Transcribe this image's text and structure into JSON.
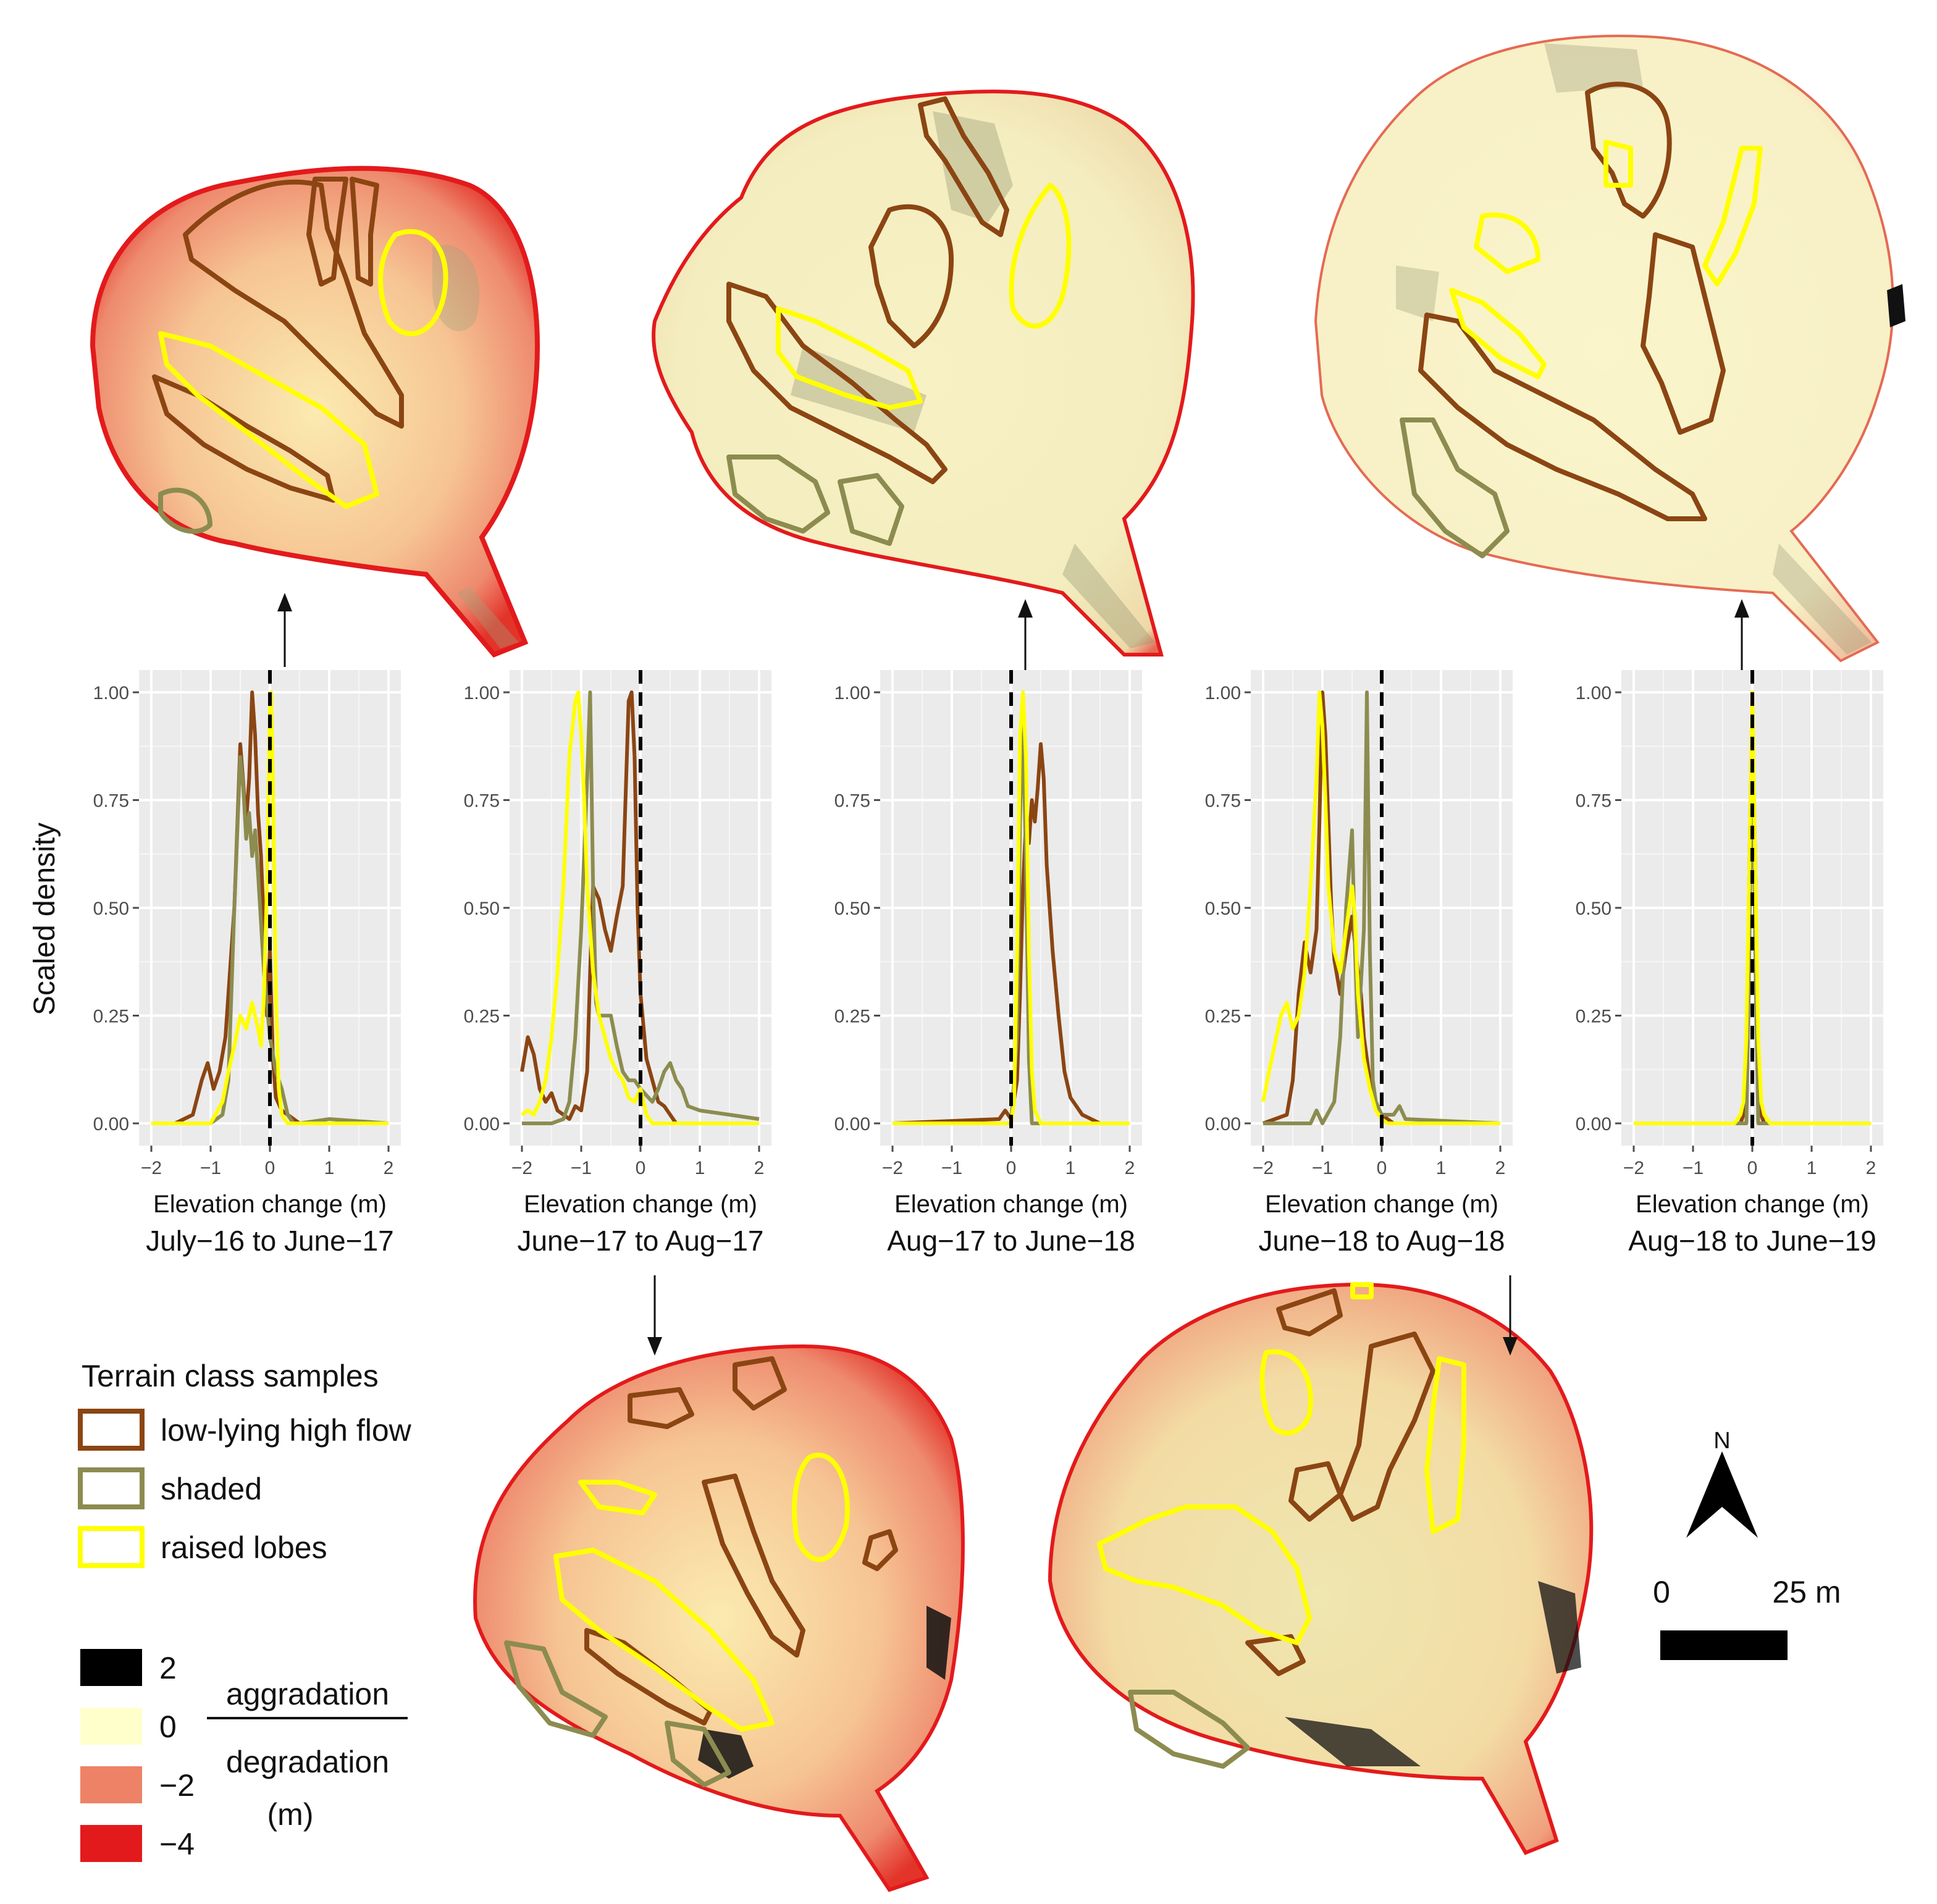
{
  "figure": {
    "y_axis_title": "Scaled density",
    "x_axis_title": "Elevation change (m)"
  },
  "chart_data": {
    "type": "line",
    "x_domain": [
      -2,
      2
    ],
    "y_domain": [
      0,
      1
    ],
    "x_ticks": [
      "−2",
      "−1",
      "0",
      "1",
      "2"
    ],
    "y_ticks": [
      "0.00",
      "0.25",
      "0.50",
      "0.75",
      "1.00"
    ],
    "reference_line_x": 0,
    "series_names": [
      "low-lying high flow",
      "shaded",
      "raised lobes"
    ],
    "series_colors": {
      "low-lying high flow": "#8B4513",
      "shaded": "#8C8C50",
      "raised lobes": "#FFFF00"
    },
    "panels": [
      {
        "title": "July−16 to June−17",
        "series": [
          {
            "name": "low-lying high flow",
            "x": [
              -2.0,
              -1.6,
              -1.3,
              -1.15,
              -1.05,
              -0.95,
              -0.85,
              -0.75,
              -0.6,
              -0.5,
              -0.4,
              -0.35,
              -0.3,
              -0.25,
              -0.2,
              -0.15,
              -0.1,
              -0.05,
              0.0,
              0.05,
              0.1,
              0.2,
              0.3,
              0.4,
              0.5,
              2.0
            ],
            "y": [
              0.0,
              0.0,
              0.02,
              0.1,
              0.14,
              0.08,
              0.12,
              0.2,
              0.5,
              0.88,
              0.7,
              0.8,
              1.0,
              0.9,
              0.72,
              0.62,
              0.45,
              0.25,
              0.4,
              0.15,
              0.06,
              0.03,
              0.02,
              0.01,
              0.0,
              0.0
            ]
          },
          {
            "name": "shaded",
            "x": [
              -2.0,
              -1.0,
              -0.8,
              -0.7,
              -0.6,
              -0.5,
              -0.45,
              -0.4,
              -0.35,
              -0.3,
              -0.25,
              -0.2,
              -0.1,
              0.0,
              0.1,
              0.2,
              0.3,
              0.4,
              0.5,
              1.0,
              2.0
            ],
            "y": [
              0.0,
              0.0,
              0.02,
              0.1,
              0.5,
              0.85,
              0.78,
              0.66,
              0.72,
              0.62,
              0.68,
              0.58,
              0.35,
              0.2,
              0.12,
              0.08,
              0.02,
              0.0,
              0.0,
              0.01,
              0.0
            ],
            "approximate": true
          },
          {
            "name": "raised lobes",
            "x": [
              -2.0,
              -1.5,
              -1.0,
              -0.8,
              -0.7,
              -0.6,
              -0.5,
              -0.4,
              -0.3,
              -0.2,
              -0.15,
              -0.1,
              -0.05,
              0.0,
              0.02,
              0.05,
              0.1,
              0.15,
              0.2,
              0.3,
              0.5,
              1.0,
              2.0
            ],
            "y": [
              0.0,
              0.0,
              0.0,
              0.05,
              0.12,
              0.18,
              0.25,
              0.22,
              0.28,
              0.22,
              0.18,
              0.3,
              0.55,
              0.96,
              1.0,
              0.8,
              0.3,
              0.08,
              0.02,
              0.0,
              0.0,
              0.0,
              0.0
            ]
          }
        ]
      },
      {
        "title": "June−17 to Aug−17",
        "series": [
          {
            "name": "low-lying high flow",
            "x": [
              -2.0,
              -1.9,
              -1.8,
              -1.7,
              -1.6,
              -1.5,
              -1.4,
              -1.2,
              -1.1,
              -1.0,
              -0.9,
              -0.85,
              -0.8,
              -0.7,
              -0.6,
              -0.5,
              -0.4,
              -0.3,
              -0.2,
              -0.15,
              -0.1,
              -0.05,
              0.0,
              0.1,
              0.2,
              0.3,
              0.4,
              0.5,
              0.6,
              2.0
            ],
            "y": [
              0.12,
              0.2,
              0.16,
              0.08,
              0.05,
              0.07,
              0.03,
              0.01,
              0.04,
              0.03,
              0.12,
              0.35,
              0.55,
              0.52,
              0.45,
              0.4,
              0.48,
              0.55,
              0.98,
              1.0,
              0.85,
              0.5,
              0.3,
              0.15,
              0.1,
              0.05,
              0.04,
              0.02,
              0.0,
              0.0
            ]
          },
          {
            "name": "shaded",
            "x": [
              -2.0,
              -1.5,
              -1.3,
              -1.2,
              -1.1,
              -1.0,
              -0.9,
              -0.85,
              -0.8,
              -0.75,
              -0.7,
              -0.6,
              -0.5,
              -0.4,
              -0.3,
              -0.2,
              -0.1,
              0.0,
              0.2,
              0.3,
              0.4,
              0.5,
              0.6,
              0.7,
              0.8,
              1.0,
              1.5,
              2.0
            ],
            "y": [
              0.0,
              0.0,
              0.01,
              0.05,
              0.2,
              0.45,
              0.8,
              1.0,
              0.55,
              0.28,
              0.25,
              0.25,
              0.25,
              0.18,
              0.12,
              0.1,
              0.1,
              0.08,
              0.05,
              0.08,
              0.12,
              0.14,
              0.1,
              0.08,
              0.04,
              0.03,
              0.02,
              0.01
            ]
          },
          {
            "name": "raised lobes",
            "x": [
              -2.0,
              -1.9,
              -1.8,
              -1.7,
              -1.6,
              -1.5,
              -1.4,
              -1.3,
              -1.2,
              -1.1,
              -1.05,
              -1.0,
              -0.95,
              -0.9,
              -0.8,
              -0.7,
              -0.6,
              -0.5,
              -0.4,
              -0.3,
              -0.2,
              -0.1,
              0.0,
              0.1,
              0.2,
              2.0
            ],
            "y": [
              0.02,
              0.03,
              0.02,
              0.05,
              0.1,
              0.2,
              0.35,
              0.55,
              0.85,
              0.98,
              1.0,
              0.9,
              0.75,
              0.55,
              0.35,
              0.25,
              0.2,
              0.15,
              0.12,
              0.1,
              0.06,
              0.05,
              0.08,
              0.02,
              0.0,
              0.0
            ]
          }
        ]
      },
      {
        "title": "Aug−17 to June−18",
        "series": [
          {
            "name": "low-lying high flow",
            "x": [
              -2.0,
              -0.2,
              -0.1,
              0.0,
              0.1,
              0.15,
              0.2,
              0.25,
              0.3,
              0.35,
              0.4,
              0.45,
              0.5,
              0.55,
              0.6,
              0.7,
              0.8,
              0.9,
              1.0,
              1.2,
              1.5,
              2.0
            ],
            "y": [
              0.0,
              0.01,
              0.03,
              0.01,
              0.1,
              0.3,
              0.55,
              0.7,
              0.65,
              0.75,
              0.7,
              0.78,
              0.88,
              0.8,
              0.6,
              0.4,
              0.25,
              0.12,
              0.06,
              0.02,
              0.0,
              0.0
            ]
          },
          {
            "name": "shaded",
            "x": [
              -2.0,
              0.0,
              0.1,
              0.15,
              0.2,
              0.25,
              0.3,
              0.35,
              2.0
            ],
            "y": [
              0.0,
              0.0,
              0.2,
              0.7,
              0.95,
              0.6,
              0.15,
              0.0,
              0.0
            ]
          },
          {
            "name": "raised lobes",
            "x": [
              -2.0,
              0.0,
              0.05,
              0.1,
              0.15,
              0.2,
              0.25,
              0.3,
              0.35,
              0.4,
              0.5,
              2.0
            ],
            "y": [
              0.0,
              0.0,
              0.05,
              0.4,
              0.9,
              1.0,
              0.85,
              0.4,
              0.12,
              0.03,
              0.0,
              0.0
            ]
          }
        ]
      },
      {
        "title": "June−18 to Aug−18",
        "series": [
          {
            "name": "low-lying high flow",
            "x": [
              -2.0,
              -1.6,
              -1.5,
              -1.4,
              -1.3,
              -1.2,
              -1.1,
              -1.05,
              -1.0,
              -0.95,
              -0.9,
              -0.85,
              -0.8,
              -0.7,
              -0.6,
              -0.5,
              -0.4,
              -0.35,
              -0.3,
              -0.2,
              -0.1,
              0.0,
              0.2,
              2.0
            ],
            "y": [
              0.0,
              0.02,
              0.1,
              0.3,
              0.42,
              0.35,
              0.45,
              0.7,
              1.0,
              0.9,
              0.7,
              0.5,
              0.38,
              0.3,
              0.4,
              0.48,
              0.35,
              0.3,
              0.2,
              0.1,
              0.05,
              0.02,
              0.0,
              0.0
            ]
          },
          {
            "name": "shaded",
            "x": [
              -2.0,
              -1.2,
              -1.1,
              -1.0,
              -0.8,
              -0.7,
              -0.6,
              -0.5,
              -0.45,
              -0.4,
              -0.3,
              -0.25,
              -0.2,
              -0.15,
              -0.1,
              0.0,
              0.2,
              0.3,
              0.4,
              2.0
            ],
            "y": [
              0.0,
              0.0,
              0.03,
              0.0,
              0.05,
              0.2,
              0.5,
              0.68,
              0.4,
              0.2,
              0.45,
              1.0,
              0.4,
              0.1,
              0.05,
              0.02,
              0.02,
              0.04,
              0.01,
              0.0
            ]
          },
          {
            "name": "raised lobes",
            "x": [
              -2.0,
              -1.9,
              -1.7,
              -1.6,
              -1.5,
              -1.4,
              -1.3,
              -1.2,
              -1.1,
              -1.05,
              -1.0,
              -0.95,
              -0.9,
              -0.8,
              -0.7,
              -0.6,
              -0.5,
              -0.45,
              -0.4,
              -0.3,
              -0.2,
              -0.1,
              0.0,
              0.1,
              2.0
            ],
            "y": [
              0.05,
              0.12,
              0.25,
              0.28,
              0.22,
              0.25,
              0.35,
              0.55,
              0.8,
              1.0,
              0.92,
              0.75,
              0.55,
              0.4,
              0.35,
              0.45,
              0.55,
              0.48,
              0.3,
              0.15,
              0.08,
              0.03,
              0.01,
              0.0,
              0.0
            ]
          }
        ]
      },
      {
        "title": "Aug−18 to June−19",
        "series": [
          {
            "name": "low-lying high flow",
            "x": [
              -2.0,
              -0.2,
              -0.15,
              -0.1,
              -0.05,
              0.0,
              0.05,
              0.1,
              0.15,
              0.2,
              2.0
            ],
            "y": [
              0.0,
              0.0,
              0.02,
              0.1,
              0.6,
              0.95,
              0.6,
              0.1,
              0.02,
              0.0,
              0.0
            ]
          },
          {
            "name": "shaded",
            "x": [
              -2.0,
              -0.1,
              -0.05,
              0.0,
              0.05,
              0.1,
              2.0
            ],
            "y": [
              0.0,
              0.0,
              0.4,
              0.95,
              0.4,
              0.0,
              0.0
            ]
          },
          {
            "name": "raised lobes",
            "x": [
              -2.0,
              -0.3,
              -0.2,
              -0.15,
              -0.1,
              -0.05,
              0.0,
              0.05,
              0.1,
              0.15,
              0.2,
              0.3,
              2.0
            ],
            "y": [
              0.0,
              0.0,
              0.02,
              0.05,
              0.2,
              0.6,
              1.0,
              0.6,
              0.2,
              0.05,
              0.02,
              0.0,
              0.0
            ]
          }
        ]
      }
    ]
  },
  "legend": {
    "title": "Terrain class samples",
    "items": [
      {
        "label": "low-lying high flow",
        "color": "#8B4513"
      },
      {
        "label": "shaded",
        "color": "#8C8C50"
      },
      {
        "label": "raised lobes",
        "color": "#FFFF00"
      }
    ]
  },
  "color_scale": {
    "entries": [
      {
        "value": "2",
        "color": "#000000"
      },
      {
        "value": "0",
        "color": "#FFFFCC"
      },
      {
        "value": "−2",
        "color": "#EE8266"
      },
      {
        "value": "−4",
        "color": "#E31A1C"
      }
    ],
    "upper_label": "aggradation",
    "lower_label": "degradation",
    "unit": "(m)"
  },
  "north_arrow": {
    "label": "N"
  },
  "scale_bar": {
    "start_label": "0",
    "end_label": "25 m"
  }
}
